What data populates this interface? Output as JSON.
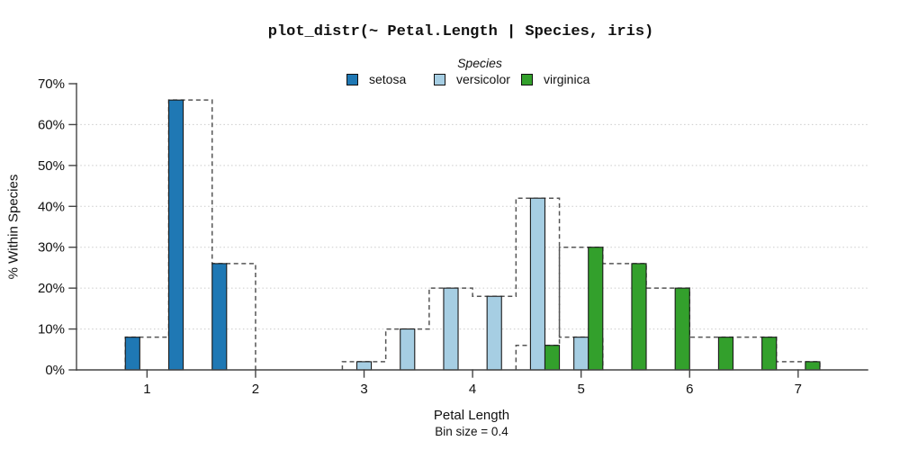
{
  "chart_data": {
    "type": "bar",
    "subtype": "dodged-histogram-with-dashed-step-outlines",
    "title": "plot_distr(~ Petal.Length | Species, iris)",
    "legend_title": "Species",
    "legend_position": "top-center",
    "xlabel": "Petal Length",
    "xlabel_note": "Bin size = 0.4",
    "ylabel": "% Within Species",
    "bin_size": 0.4,
    "x_ticks": [
      1,
      2,
      3,
      4,
      5,
      6,
      7
    ],
    "y_ticks": [
      0,
      10,
      20,
      30,
      40,
      50,
      60,
      70
    ],
    "y_tick_suffix": "%",
    "grid_y": [
      10,
      20,
      30,
      40,
      50,
      60
    ],
    "xlim": [
      0.35,
      7.64
    ],
    "ylim": [
      0,
      70
    ],
    "series": [
      {
        "name": "setosa",
        "color": "#1f78b4",
        "bin_start": 0.8,
        "percents": [
          8,
          66,
          26
        ]
      },
      {
        "name": "versicolor",
        "color": "#a6cee3",
        "bin_start": 2.8,
        "percents": [
          2,
          10,
          20,
          18,
          42,
          8
        ]
      },
      {
        "name": "virginica",
        "color": "#33a02c",
        "bin_start": 4.4,
        "percents": [
          6,
          30,
          26,
          20,
          8,
          8,
          2
        ]
      }
    ],
    "outline": {
      "style": "dashed",
      "color": "#555555",
      "meaning": "full-bin-width step outline of each species' histogram"
    },
    "colors": {
      "bar_border": "#1b1b1b",
      "grid": "#cbcbcb",
      "axis": "#444444",
      "text": "#111111",
      "background": "#ffffff"
    }
  }
}
